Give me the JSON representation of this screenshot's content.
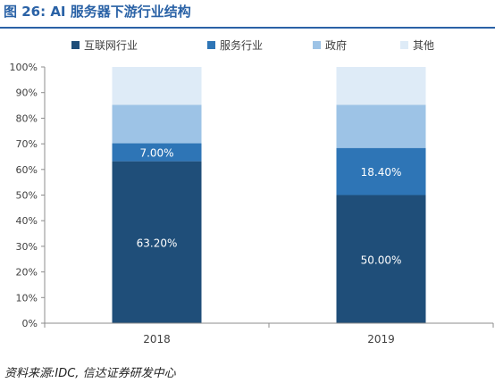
{
  "figure": {
    "title": "图 26: AI 服务器下游行业结构",
    "source": "资料来源:IDC, 信达证券研发中心"
  },
  "chart_data": {
    "type": "bar",
    "stacked": true,
    "categories": [
      "2018",
      "2019"
    ],
    "series": [
      {
        "name": "互联网行业",
        "values": [
          63.2,
          50.0
        ],
        "labels": [
          "63.20%",
          "50.00%"
        ],
        "color": "#1f4e79"
      },
      {
        "name": "服务行业",
        "values": [
          7.0,
          18.4
        ],
        "labels": [
          "7.00%",
          "18.40%"
        ],
        "color": "#2e75b6"
      },
      {
        "name": "政府",
        "values": [
          15.0,
          16.8
        ],
        "labels": [
          "",
          ""
        ],
        "color": "#9dc3e6"
      },
      {
        "name": "其他",
        "values": [
          14.8,
          14.8
        ],
        "labels": [
          "",
          ""
        ],
        "color": "#deebf7"
      }
    ],
    "yticks": [
      "0%",
      "10%",
      "20%",
      "30%",
      "40%",
      "50%",
      "60%",
      "70%",
      "80%",
      "90%",
      "100%"
    ],
    "ylim": [
      0,
      100
    ],
    "legend_position": "top",
    "grid": false
  }
}
